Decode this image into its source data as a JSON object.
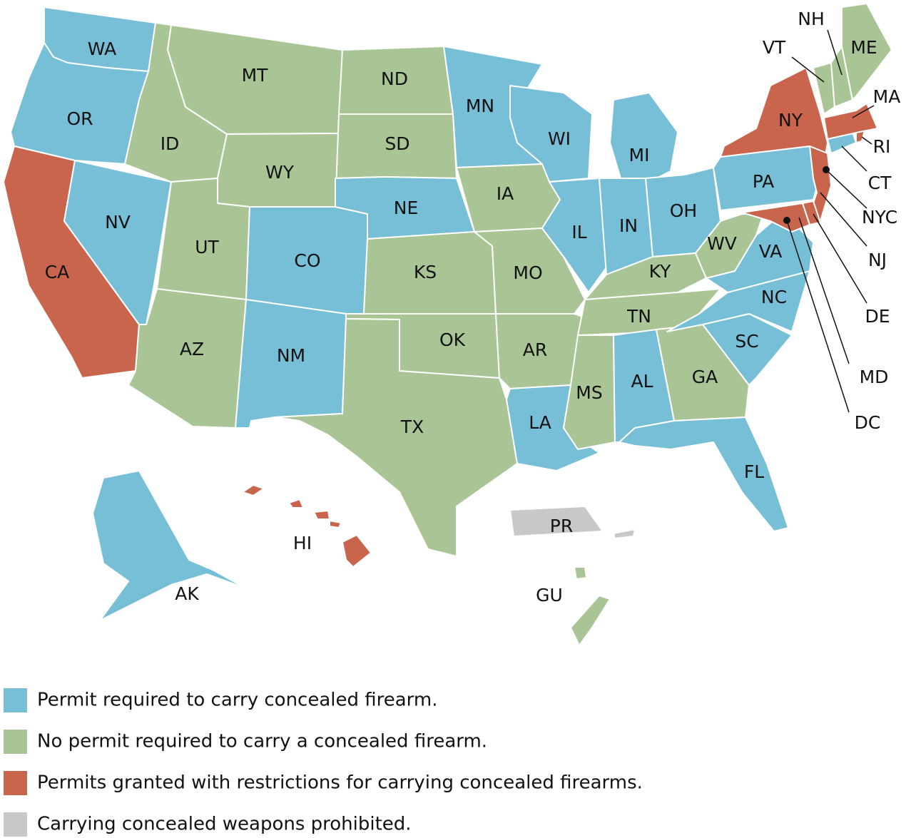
{
  "legend": [
    {
      "label": "Permit required to carry concealed firearm.",
      "color": "#77bfd6"
    },
    {
      "label": "No permit required to carry a concealed firearm.",
      "color": "#a9c596"
    },
    {
      "label": "Permits granted with restrictions for carrying concealed firearms.",
      "color": "#c9654d"
    },
    {
      "label": "Carrying concealed weapons prohibited.",
      "color": "#c8c8c8"
    }
  ],
  "regions": [
    {
      "label": "WA",
      "color": "#77bfd6"
    },
    {
      "label": "OR",
      "color": "#77bfd6"
    },
    {
      "label": "CA",
      "color": "#c9654d"
    },
    {
      "label": "NV",
      "color": "#77bfd6"
    },
    {
      "label": "ID",
      "color": "#a9c596"
    },
    {
      "label": "MT",
      "color": "#a9c596"
    },
    {
      "label": "WY",
      "color": "#a9c596"
    },
    {
      "label": "UT",
      "color": "#a9c596"
    },
    {
      "label": "AZ",
      "color": "#a9c596"
    },
    {
      "label": "CO",
      "color": "#77bfd6"
    },
    {
      "label": "NM",
      "color": "#77bfd6"
    },
    {
      "label": "ND",
      "color": "#a9c596"
    },
    {
      "label": "SD",
      "color": "#a9c596"
    },
    {
      "label": "NE",
      "color": "#77bfd6"
    },
    {
      "label": "KS",
      "color": "#a9c596"
    },
    {
      "label": "OK",
      "color": "#a9c596"
    },
    {
      "label": "TX",
      "color": "#a9c596"
    },
    {
      "label": "MN",
      "color": "#77bfd6"
    },
    {
      "label": "IA",
      "color": "#a9c596"
    },
    {
      "label": "MO",
      "color": "#a9c596"
    },
    {
      "label": "AR",
      "color": "#a9c596"
    },
    {
      "label": "LA",
      "color": "#77bfd6"
    },
    {
      "label": "WI",
      "color": "#77bfd6"
    },
    {
      "label": "IL",
      "color": "#77bfd6"
    },
    {
      "label": "IN",
      "color": "#77bfd6"
    },
    {
      "label": "MI",
      "color": "#77bfd6"
    },
    {
      "label": "OH",
      "color": "#77bfd6"
    },
    {
      "label": "KY",
      "color": "#a9c596"
    },
    {
      "label": "TN",
      "color": "#a9c596"
    },
    {
      "label": "MS",
      "color": "#a9c596"
    },
    {
      "label": "AL",
      "color": "#77bfd6"
    },
    {
      "label": "GA",
      "color": "#a9c596"
    },
    {
      "label": "FL",
      "color": "#77bfd6"
    },
    {
      "label": "SC",
      "color": "#77bfd6"
    },
    {
      "label": "NC",
      "color": "#77bfd6"
    },
    {
      "label": "VA",
      "color": "#77bfd6"
    },
    {
      "label": "WV",
      "color": "#a9c596"
    },
    {
      "label": "PA",
      "color": "#77bfd6"
    },
    {
      "label": "NY",
      "color": "#c9654d"
    },
    {
      "label": "NJ",
      "color": "#c9654d"
    },
    {
      "label": "MD",
      "color": "#c9654d"
    },
    {
      "label": "DE",
      "color": "#c9654d"
    },
    {
      "label": "CT",
      "color": "#77bfd6"
    },
    {
      "label": "RI",
      "color": "#c9654d"
    },
    {
      "label": "MA",
      "color": "#c9654d"
    },
    {
      "label": "VT",
      "color": "#a9c596"
    },
    {
      "label": "NH",
      "color": "#a9c596"
    },
    {
      "label": "ME",
      "color": "#a9c596"
    },
    {
      "label": "AK",
      "color": "#77bfd6"
    },
    {
      "label": "HI",
      "color": "#c9654d"
    },
    {
      "label": "PR",
      "color": "#c8c8c8"
    },
    {
      "label": "GU",
      "color": "#a9c596"
    },
    {
      "label": "NYC",
      "color": "#111111"
    },
    {
      "label": "DC",
      "color": "#111111"
    }
  ]
}
